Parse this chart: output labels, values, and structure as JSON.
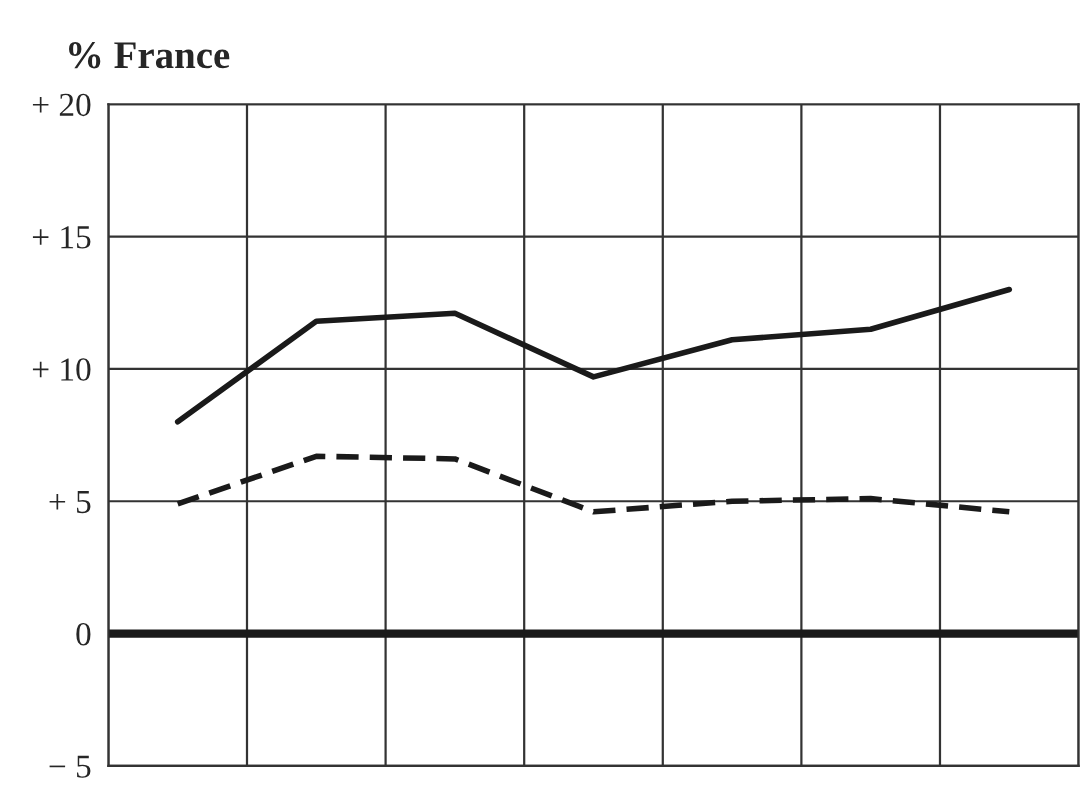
{
  "chart_data": {
    "type": "line",
    "ylabel": "% France",
    "categories": [
      null,
      null,
      null,
      null,
      null,
      null,
      null
    ],
    "series": [
      {
        "color": "#1a1a1a",
        "line_style": "solid",
        "values": [
          8.0,
          11.8,
          12.1,
          9.7,
          11.1,
          11.5,
          13.0
        ]
      },
      {
        "color": "#1a1a1a",
        "line_style": "dashed",
        "values": [
          4.9,
          6.7,
          6.6,
          4.6,
          5.0,
          5.1,
          4.6
        ]
      }
    ],
    "ylim": [
      -5,
      20
    ],
    "yticks": [
      {
        "value": -5,
        "label": "− 5"
      },
      0,
      {
        "value": 5,
        "label": "+ 5"
      },
      {
        "value": 10,
        "label": "+ 10"
      },
      {
        "value": 15,
        "label": "+ 15"
      },
      {
        "value": 20,
        "label": "+ 20"
      }
    ],
    "ref_lines": [
      {
        "axis": "y",
        "value": 0,
        "color": "#1a1a1a"
      }
    ],
    "grid": true,
    "marker": "none",
    "legend": false
  }
}
